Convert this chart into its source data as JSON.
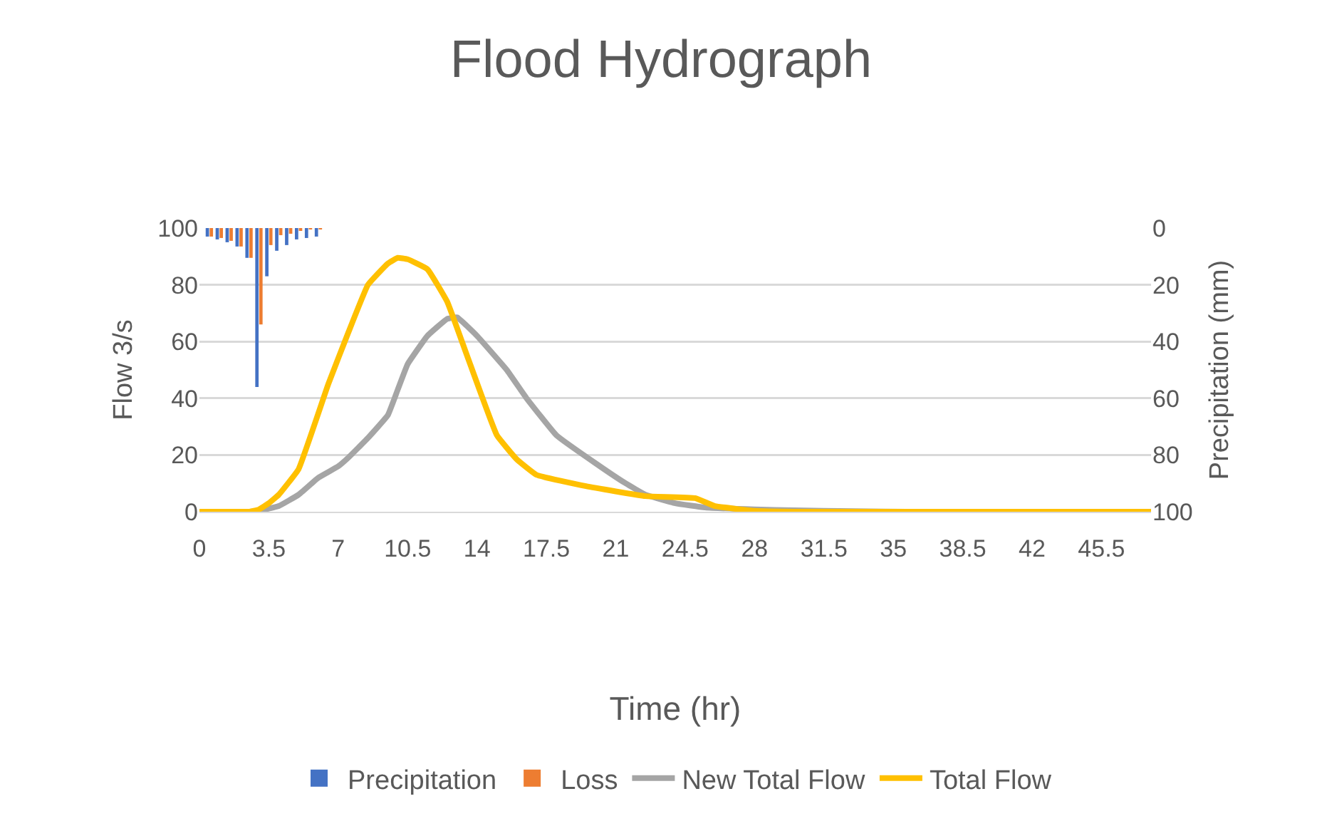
{
  "chart_data": {
    "type": "line",
    "title": "Flood Hydrograph",
    "xlabel": "Time (hr)",
    "ylabel": "Flow 3/s",
    "y2label": "Precipitation (mm)",
    "xlim": [
      0,
      48
    ],
    "xticks": [
      0,
      3.5,
      7,
      10.5,
      14,
      17.5,
      21,
      24.5,
      28,
      31.5,
      35,
      38.5,
      42,
      45.5
    ],
    "ylim": [
      0,
      100
    ],
    "yticks": [
      0,
      20,
      40,
      60,
      80,
      100
    ],
    "y2lim": [
      100,
      0
    ],
    "y2ticks": [
      0,
      20,
      40,
      60,
      80,
      100
    ],
    "grid": "y",
    "legend": "bottom",
    "marker": "none",
    "line_style": "solid",
    "series": [
      {
        "name": "Precipitation",
        "type": "bar",
        "axis": "y2",
        "color": "#4472c4",
        "x": [
          0.5,
          1,
          1.5,
          2,
          2.5,
          3,
          3.5,
          4,
          4.5,
          5,
          5.5,
          6
        ],
        "values": [
          3,
          4,
          5,
          6.5,
          10.5,
          56,
          17,
          8,
          6,
          4,
          3.5,
          3
        ]
      },
      {
        "name": "Loss",
        "type": "bar",
        "axis": "y2",
        "color": "#ed7d31",
        "x": [
          0.5,
          1,
          1.5,
          2,
          2.5,
          3,
          3.5,
          4,
          4.5,
          5,
          5.5,
          6
        ],
        "values": [
          3,
          3.5,
          4.5,
          6.5,
          10.5,
          34,
          6,
          2.5,
          2,
          1,
          0.5,
          0.5
        ]
      },
      {
        "name": "New Total Flow",
        "color": "#a5a5a5",
        "x": [
          0,
          1,
          2,
          2.5,
          3,
          4,
          5,
          6,
          7,
          7.5,
          8.5,
          9.5,
          10,
          10.5,
          11.5,
          12.5,
          13,
          14,
          15.5,
          16.5,
          18,
          20,
          21.5,
          22.5,
          24,
          25.5,
          28,
          30,
          33,
          36,
          40,
          44,
          48
        ],
        "values": [
          0,
          0,
          0,
          0,
          0.3,
          2,
          6,
          12,
          16,
          19,
          26,
          34,
          43,
          52,
          62,
          68,
          68.5,
          62,
          50,
          40,
          27,
          17,
          10,
          6,
          3,
          1.5,
          0.8,
          0.5,
          0.2,
          0,
          0,
          0,
          0
        ]
      },
      {
        "name": "Total Flow",
        "color": "#ffc000",
        "x": [
          0,
          1,
          2,
          2.5,
          3,
          3.5,
          4,
          5,
          6.5,
          7.5,
          8.5,
          9.5,
          10,
          10.5,
          11.5,
          12.5,
          13.5,
          15,
          16,
          17,
          19.5,
          22.5,
          25,
          26,
          28,
          30,
          33,
          36,
          40,
          44,
          48
        ],
        "values": [
          0,
          0,
          0,
          0,
          0.8,
          3,
          6,
          15,
          45,
          63,
          80,
          87.5,
          89.5,
          89,
          85.5,
          74,
          55,
          27,
          18.5,
          13,
          9,
          5.5,
          4.8,
          2,
          0.3,
          0,
          0,
          0,
          0,
          0,
          0
        ]
      }
    ]
  }
}
